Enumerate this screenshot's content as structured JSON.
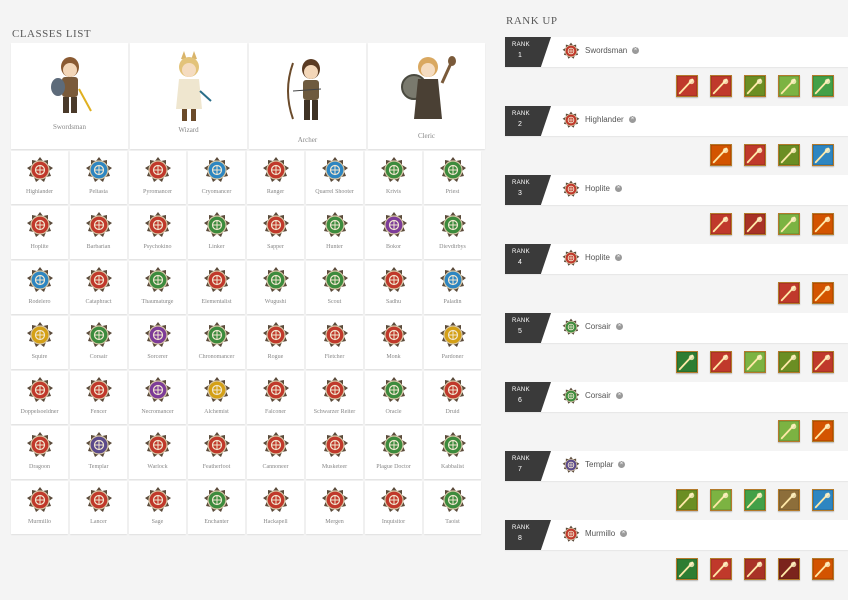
{
  "classes_title": "CLASSES LIST",
  "rank_up_title": "RANK UP",
  "base_classes": [
    {
      "name": "Swordsman",
      "icon": "swordsman-character-icon"
    },
    {
      "name": "Wizard",
      "icon": "wizard-character-icon"
    },
    {
      "name": "Archer",
      "icon": "archer-character-icon"
    },
    {
      "name": "Cleric",
      "icon": "cleric-character-icon"
    }
  ],
  "classes": [
    {
      "name": "Highlander",
      "icon": "highlander-emblem-icon",
      "color": "#c0392b"
    },
    {
      "name": "Peltasta",
      "icon": "peltasta-emblem-icon",
      "color": "#2e86c1"
    },
    {
      "name": "Pyromancer",
      "icon": "pyromancer-emblem-icon",
      "color": "#c0392b"
    },
    {
      "name": "Cryomancer",
      "icon": "cryomancer-emblem-icon",
      "color": "#2e86c1"
    },
    {
      "name": "Ranger",
      "icon": "ranger-emblem-icon",
      "color": "#c0392b"
    },
    {
      "name": "Quarrel Shooter",
      "icon": "quarrel-shooter-emblem-icon",
      "color": "#2e86c1"
    },
    {
      "name": "Krivis",
      "icon": "krivis-emblem-icon",
      "color": "#3d8b3d"
    },
    {
      "name": "Priest",
      "icon": "priest-emblem-icon",
      "color": "#3d8b3d"
    },
    {
      "name": "Hoplite",
      "icon": "hoplite-emblem-icon",
      "color": "#c0392b"
    },
    {
      "name": "Barbarian",
      "icon": "barbarian-emblem-icon",
      "color": "#c0392b"
    },
    {
      "name": "Psychokino",
      "icon": "psychokino-emblem-icon",
      "color": "#c0392b"
    },
    {
      "name": "Linker",
      "icon": "linker-emblem-icon",
      "color": "#3d8b3d"
    },
    {
      "name": "Sapper",
      "icon": "sapper-emblem-icon",
      "color": "#c0392b"
    },
    {
      "name": "Hunter",
      "icon": "hunter-emblem-icon",
      "color": "#3d8b3d"
    },
    {
      "name": "Bokor",
      "icon": "bokor-emblem-icon",
      "color": "#7d3c98"
    },
    {
      "name": "Dievdirbys",
      "icon": "dievdirbys-emblem-icon",
      "color": "#3d8b3d"
    },
    {
      "name": "Rodelero",
      "icon": "rodelero-emblem-icon",
      "color": "#2e86c1"
    },
    {
      "name": "Cataphract",
      "icon": "cataphract-emblem-icon",
      "color": "#c0392b"
    },
    {
      "name": "Thaumaturge",
      "icon": "thaumaturge-emblem-icon",
      "color": "#3d8b3d"
    },
    {
      "name": "Elementalist",
      "icon": "elementalist-emblem-icon",
      "color": "#c0392b"
    },
    {
      "name": "Wugushi",
      "icon": "wugushi-emblem-icon",
      "color": "#3d8b3d"
    },
    {
      "name": "Scout",
      "icon": "scout-emblem-icon",
      "color": "#3d8b3d"
    },
    {
      "name": "Sadhu",
      "icon": "sadhu-emblem-icon",
      "color": "#c0392b"
    },
    {
      "name": "Paladin",
      "icon": "paladin-emblem-icon",
      "color": "#2e86c1"
    },
    {
      "name": "Squire",
      "icon": "squire-emblem-icon",
      "color": "#d4a017"
    },
    {
      "name": "Corsair",
      "icon": "corsair-emblem-icon",
      "color": "#3d8b3d"
    },
    {
      "name": "Sorcerer",
      "icon": "sorcerer-emblem-icon",
      "color": "#7d3c98"
    },
    {
      "name": "Chronomancer",
      "icon": "chronomancer-emblem-icon",
      "color": "#3d8b3d"
    },
    {
      "name": "Rogue",
      "icon": "rogue-emblem-icon",
      "color": "#c0392b"
    },
    {
      "name": "Fletcher",
      "icon": "fletcher-emblem-icon",
      "color": "#c0392b"
    },
    {
      "name": "Monk",
      "icon": "monk-emblem-icon",
      "color": "#c0392b"
    },
    {
      "name": "Pardoner",
      "icon": "pardoner-emblem-icon",
      "color": "#d4a017"
    },
    {
      "name": "Doppelsoeldner",
      "icon": "doppelsoeldner-emblem-icon",
      "color": "#c0392b"
    },
    {
      "name": "Fencer",
      "icon": "fencer-emblem-icon",
      "color": "#c0392b"
    },
    {
      "name": "Necromancer",
      "icon": "necromancer-emblem-icon",
      "color": "#7d3c98"
    },
    {
      "name": "Alchemist",
      "icon": "alchemist-emblem-icon",
      "color": "#d4a017"
    },
    {
      "name": "Falconer",
      "icon": "falconer-emblem-icon",
      "color": "#c0392b"
    },
    {
      "name": "Schwarzer Reiter",
      "icon": "schwarzer-reiter-emblem-icon",
      "color": "#c0392b"
    },
    {
      "name": "Oracle",
      "icon": "oracle-emblem-icon",
      "color": "#3d8b3d"
    },
    {
      "name": "Druid",
      "icon": "druid-emblem-icon",
      "color": "#c0392b"
    },
    {
      "name": "Dragoon",
      "icon": "dragoon-emblem-icon",
      "color": "#c0392b"
    },
    {
      "name": "Templar",
      "icon": "templar-emblem-icon",
      "color": "#5b4a8a"
    },
    {
      "name": "Warlock",
      "icon": "warlock-emblem-icon",
      "color": "#c0392b"
    },
    {
      "name": "Featherfoot",
      "icon": "featherfoot-emblem-icon",
      "color": "#c0392b"
    },
    {
      "name": "Cannoneer",
      "icon": "cannoneer-emblem-icon",
      "color": "#c0392b"
    },
    {
      "name": "Musketeer",
      "icon": "musketeer-emblem-icon",
      "color": "#c0392b"
    },
    {
      "name": "Plague Doctor",
      "icon": "plague-doctor-emblem-icon",
      "color": "#3d8b3d"
    },
    {
      "name": "Kabbalist",
      "icon": "kabbalist-emblem-icon",
      "color": "#3d8b3d"
    },
    {
      "name": "Murmillo",
      "icon": "murmillo-emblem-icon",
      "color": "#c0392b"
    },
    {
      "name": "Lancer",
      "icon": "lancer-emblem-icon",
      "color": "#c0392b"
    },
    {
      "name": "Sage",
      "icon": "sage-emblem-icon",
      "color": "#c0392b"
    },
    {
      "name": "Enchanter",
      "icon": "enchanter-emblem-icon",
      "color": "#3d8b3d"
    },
    {
      "name": "Hackapell",
      "icon": "hackapell-emblem-icon",
      "color": "#c0392b"
    },
    {
      "name": "Mergen",
      "icon": "mergen-emblem-icon",
      "color": "#c0392b"
    },
    {
      "name": "Inquisitor",
      "icon": "inquisitor-emblem-icon",
      "color": "#c0392b"
    },
    {
      "name": "Taoist",
      "icon": "taoist-emblem-icon",
      "color": "#3d8b3d"
    }
  ],
  "ranks": [
    {
      "label": "RANK",
      "number": "1",
      "class_name": "Swordsman",
      "icon": "swordsman-emblem-icon",
      "color": "#c0392b",
      "skills": [
        "#c0392b",
        "#c0392b",
        "#6b8e23",
        "#7cb342",
        "#43a047"
      ]
    },
    {
      "label": "RANK",
      "number": "2",
      "class_name": "Highlander",
      "icon": "highlander-emblem-icon",
      "color": "#c0392b",
      "skills": [
        "#d35400",
        "#c0392b",
        "#6b8e23",
        "#2e86c1"
      ]
    },
    {
      "label": "RANK",
      "number": "3",
      "class_name": "Hoplite",
      "icon": "hoplite-emblem-icon",
      "color": "#c0392b",
      "skills": [
        "#c0392b",
        "#a93226",
        "#7cb342",
        "#d35400"
      ]
    },
    {
      "label": "RANK",
      "number": "4",
      "class_name": "Hoplite",
      "icon": "hoplite-emblem-icon",
      "color": "#c0392b",
      "skills": [
        "#c0392b",
        "#d35400"
      ]
    },
    {
      "label": "RANK",
      "number": "5",
      "class_name": "Corsair",
      "icon": "corsair-emblem-icon",
      "color": "#3d8b3d",
      "skills": [
        "#2e7d32",
        "#c0392b",
        "#7cb342",
        "#6b8e23",
        "#c0392b"
      ]
    },
    {
      "label": "RANK",
      "number": "6",
      "class_name": "Corsair",
      "icon": "corsair-emblem-icon",
      "color": "#3d8b3d",
      "skills": [
        "#7cb342",
        "#d35400"
      ]
    },
    {
      "label": "RANK",
      "number": "7",
      "class_name": "Templar",
      "icon": "templar-emblem-icon",
      "color": "#5b4a8a",
      "skills": [
        "#6b8e23",
        "#7cb342",
        "#43a047",
        "#8d6e3a",
        "#2e86c1"
      ]
    },
    {
      "label": "RANK",
      "number": "8",
      "class_name": "Murmillo",
      "icon": "murmillo-emblem-icon",
      "color": "#c0392b",
      "skills": [
        "#2e7d32",
        "#c0392b",
        "#a93226",
        "#7b241c",
        "#d35400"
      ]
    }
  ],
  "remove_glyph": "×"
}
